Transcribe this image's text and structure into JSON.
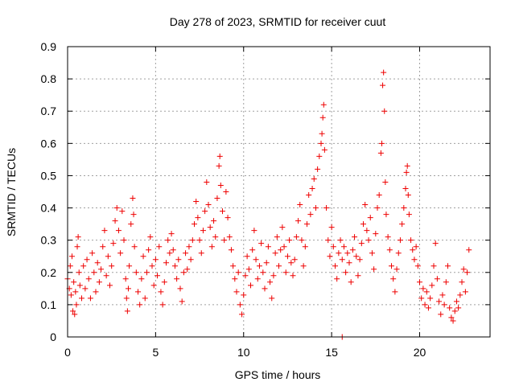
{
  "chart_data": {
    "type": "scatter",
    "title": "Day 278 of 2023, SRMTID for receiver cuut",
    "xlabel": "GPS time / hours",
    "ylabel": "SRMTID / TECUs",
    "xlim": [
      0,
      24
    ],
    "ylim": [
      0,
      0.9
    ],
    "xticks": [
      0,
      5,
      10,
      15,
      20
    ],
    "yticks": [
      0,
      0.1,
      0.2,
      0.3,
      0.4,
      0.5,
      0.6,
      0.7,
      0.8,
      0.9
    ],
    "xtick_labels": [
      "0",
      "5",
      "10",
      "15",
      "20"
    ],
    "ytick_labels": [
      "0",
      "0.1",
      "0.2",
      "0.3",
      "0.4",
      "0.5",
      "0.6",
      "0.7",
      "0.8",
      "0.9"
    ],
    "grid": true,
    "marker": "+",
    "color": "#ee0000",
    "series": [
      {
        "name": "SRMTID",
        "points": [
          [
            0.0,
            0.18
          ],
          [
            0.1,
            0.15
          ],
          [
            0.15,
            0.22
          ],
          [
            0.2,
            0.13
          ],
          [
            0.25,
            0.25
          ],
          [
            0.3,
            0.08
          ],
          [
            0.35,
            0.17
          ],
          [
            0.4,
            0.07
          ],
          [
            0.45,
            0.14
          ],
          [
            0.5,
            0.1
          ],
          [
            0.55,
            0.28
          ],
          [
            0.6,
            0.31
          ],
          [
            0.65,
            0.2
          ],
          [
            0.7,
            0.16
          ],
          [
            0.8,
            0.12
          ],
          [
            0.9,
            0.22
          ],
          [
            1.0,
            0.15
          ],
          [
            1.1,
            0.24
          ],
          [
            1.2,
            0.18
          ],
          [
            1.3,
            0.12
          ],
          [
            1.4,
            0.26
          ],
          [
            1.5,
            0.2
          ],
          [
            1.6,
            0.14
          ],
          [
            1.7,
            0.23
          ],
          [
            1.8,
            0.17
          ],
          [
            1.9,
            0.21
          ],
          [
            2.0,
            0.28
          ],
          [
            2.1,
            0.33
          ],
          [
            2.2,
            0.19
          ],
          [
            2.3,
            0.25
          ],
          [
            2.4,
            0.16
          ],
          [
            2.5,
            0.22
          ],
          [
            2.6,
            0.29
          ],
          [
            2.7,
            0.36
          ],
          [
            2.8,
            0.4
          ],
          [
            2.9,
            0.33
          ],
          [
            3.0,
            0.26
          ],
          [
            3.1,
            0.39
          ],
          [
            3.2,
            0.3
          ],
          [
            3.3,
            0.18
          ],
          [
            3.35,
            0.12
          ],
          [
            3.4,
            0.08
          ],
          [
            3.45,
            0.15
          ],
          [
            3.5,
            0.22
          ],
          [
            3.6,
            0.35
          ],
          [
            3.7,
            0.43
          ],
          [
            3.75,
            0.38
          ],
          [
            3.8,
            0.28
          ],
          [
            3.9,
            0.2
          ],
          [
            4.0,
            0.14
          ],
          [
            4.1,
            0.1
          ],
          [
            4.2,
            0.18
          ],
          [
            4.3,
            0.25
          ],
          [
            4.4,
            0.12
          ],
          [
            4.5,
            0.2
          ],
          [
            4.6,
            0.27
          ],
          [
            4.7,
            0.31
          ],
          [
            4.8,
            0.22
          ],
          [
            4.9,
            0.16
          ],
          [
            5.0,
            0.24
          ],
          [
            5.1,
            0.19
          ],
          [
            5.2,
            0.28
          ],
          [
            5.3,
            0.14
          ],
          [
            5.4,
            0.1
          ],
          [
            5.5,
            0.17
          ],
          [
            5.6,
            0.23
          ],
          [
            5.7,
            0.3
          ],
          [
            5.8,
            0.26
          ],
          [
            5.9,
            0.32
          ],
          [
            6.0,
            0.27
          ],
          [
            6.1,
            0.22
          ],
          [
            6.2,
            0.18
          ],
          [
            6.3,
            0.24
          ],
          [
            6.4,
            0.15
          ],
          [
            6.5,
            0.11
          ],
          [
            6.6,
            0.2
          ],
          [
            6.7,
            0.26
          ],
          [
            6.8,
            0.21
          ],
          [
            6.9,
            0.28
          ],
          [
            7.0,
            0.24
          ],
          [
            7.1,
            0.3
          ],
          [
            7.2,
            0.35
          ],
          [
            7.3,
            0.42
          ],
          [
            7.4,
            0.37
          ],
          [
            7.5,
            0.3
          ],
          [
            7.6,
            0.26
          ],
          [
            7.7,
            0.33
          ],
          [
            7.8,
            0.39
          ],
          [
            7.9,
            0.48
          ],
          [
            8.0,
            0.41
          ],
          [
            8.1,
            0.34
          ],
          [
            8.2,
            0.28
          ],
          [
            8.3,
            0.36
          ],
          [
            8.4,
            0.31
          ],
          [
            8.5,
            0.43
          ],
          [
            8.6,
            0.53
          ],
          [
            8.65,
            0.56
          ],
          [
            8.7,
            0.47
          ],
          [
            8.8,
            0.39
          ],
          [
            8.9,
            0.3
          ],
          [
            9.0,
            0.45
          ],
          [
            9.1,
            0.37
          ],
          [
            9.2,
            0.31
          ],
          [
            9.3,
            0.27
          ],
          [
            9.4,
            0.22
          ],
          [
            9.5,
            0.18
          ],
          [
            9.6,
            0.14
          ],
          [
            9.7,
            0.2
          ],
          [
            9.8,
            0.1
          ],
          [
            9.9,
            0.07
          ],
          [
            10.0,
            0.13
          ],
          [
            10.1,
            0.19
          ],
          [
            10.2,
            0.25
          ],
          [
            10.3,
            0.21
          ],
          [
            10.4,
            0.16
          ],
          [
            10.5,
            0.27
          ],
          [
            10.6,
            0.33
          ],
          [
            10.7,
            0.24
          ],
          [
            10.8,
            0.18
          ],
          [
            10.9,
            0.22
          ],
          [
            11.0,
            0.29
          ],
          [
            11.1,
            0.2
          ],
          [
            11.2,
            0.15
          ],
          [
            11.3,
            0.23
          ],
          [
            11.4,
            0.28
          ],
          [
            11.5,
            0.17
          ],
          [
            11.6,
            0.12
          ],
          [
            11.7,
            0.19
          ],
          [
            11.8,
            0.26
          ],
          [
            11.9,
            0.31
          ],
          [
            12.0,
            0.22
          ],
          [
            12.1,
            0.27
          ],
          [
            12.2,
            0.34
          ],
          [
            12.3,
            0.28
          ],
          [
            12.4,
            0.2
          ],
          [
            12.5,
            0.25
          ],
          [
            12.6,
            0.3
          ],
          [
            12.7,
            0.23
          ],
          [
            12.8,
            0.19
          ],
          [
            12.9,
            0.24
          ],
          [
            13.0,
            0.31
          ],
          [
            13.1,
            0.36
          ],
          [
            13.2,
            0.41
          ],
          [
            13.3,
            0.3
          ],
          [
            13.4,
            0.22
          ],
          [
            13.5,
            0.28
          ],
          [
            13.6,
            0.35
          ],
          [
            13.7,
            0.44
          ],
          [
            13.8,
            0.38
          ],
          [
            13.9,
            0.46
          ],
          [
            14.0,
            0.49
          ],
          [
            14.1,
            0.4
          ],
          [
            14.2,
            0.52
          ],
          [
            14.3,
            0.56
          ],
          [
            14.4,
            0.6
          ],
          [
            14.45,
            0.63
          ],
          [
            14.5,
            0.68
          ],
          [
            14.55,
            0.72
          ],
          [
            14.6,
            0.58
          ],
          [
            14.7,
            0.4
          ],
          [
            14.8,
            0.3
          ],
          [
            14.9,
            0.25
          ],
          [
            15.0,
            0.34
          ],
          [
            15.1,
            0.28
          ],
          [
            15.2,
            0.22
          ],
          [
            15.3,
            0.18
          ],
          [
            15.4,
            0.26
          ],
          [
            15.5,
            0.3
          ],
          [
            15.6,
            0.24
          ],
          [
            15.7,
            0.28
          ],
          [
            15.8,
            0.2
          ],
          [
            15.9,
            0.26
          ],
          [
            16.0,
            0.23
          ],
          [
            16.1,
            0.17
          ],
          [
            16.2,
            0.27
          ],
          [
            16.3,
            0.31
          ],
          [
            16.4,
            0.25
          ],
          [
            16.5,
            0.19
          ],
          [
            16.6,
            0.24
          ],
          [
            16.7,
            0.29
          ],
          [
            16.8,
            0.35
          ],
          [
            16.9,
            0.41
          ],
          [
            17.0,
            0.33
          ],
          [
            17.1,
            0.3
          ],
          [
            17.2,
            0.37
          ],
          [
            17.3,
            0.26
          ],
          [
            17.4,
            0.21
          ],
          [
            17.5,
            0.32
          ],
          [
            17.6,
            0.4
          ],
          [
            17.7,
            0.44
          ],
          [
            17.8,
            0.57
          ],
          [
            17.85,
            0.6
          ],
          [
            17.9,
            0.78
          ],
          [
            17.95,
            0.82
          ],
          [
            18.0,
            0.7
          ],
          [
            18.05,
            0.48
          ],
          [
            18.1,
            0.38
          ],
          [
            18.2,
            0.31
          ],
          [
            18.3,
            0.27
          ],
          [
            18.4,
            0.22
          ],
          [
            18.5,
            0.18
          ],
          [
            18.6,
            0.14
          ],
          [
            18.7,
            0.21
          ],
          [
            18.8,
            0.26
          ],
          [
            18.9,
            0.3
          ],
          [
            19.0,
            0.35
          ],
          [
            19.1,
            0.4
          ],
          [
            19.2,
            0.46
          ],
          [
            19.25,
            0.51
          ],
          [
            19.3,
            0.53
          ],
          [
            19.35,
            0.44
          ],
          [
            19.4,
            0.38
          ],
          [
            19.5,
            0.3
          ],
          [
            19.6,
            0.27
          ],
          [
            19.7,
            0.24
          ],
          [
            19.8,
            0.28
          ],
          [
            19.9,
            0.22
          ],
          [
            20.0,
            0.17
          ],
          [
            20.1,
            0.12
          ],
          [
            20.2,
            0.15
          ],
          [
            20.3,
            0.1
          ],
          [
            20.4,
            0.14
          ],
          [
            20.5,
            0.09
          ],
          [
            20.6,
            0.12
          ],
          [
            20.7,
            0.16
          ],
          [
            20.8,
            0.22
          ],
          [
            20.9,
            0.29
          ],
          [
            21.0,
            0.18
          ],
          [
            21.1,
            0.11
          ],
          [
            21.2,
            0.07
          ],
          [
            21.3,
            0.13
          ],
          [
            21.4,
            0.1
          ],
          [
            21.5,
            0.17
          ],
          [
            21.6,
            0.22
          ],
          [
            21.7,
            0.09
          ],
          [
            21.8,
            0.06
          ],
          [
            21.9,
            0.05
          ],
          [
            22.0,
            0.08
          ],
          [
            22.1,
            0.11
          ],
          [
            22.2,
            0.09
          ],
          [
            22.3,
            0.13
          ],
          [
            22.4,
            0.17
          ],
          [
            22.5,
            0.21
          ],
          [
            22.6,
            0.14
          ],
          [
            22.7,
            0.2
          ],
          [
            22.8,
            0.27
          ],
          [
            15.6,
            0.0
          ]
        ]
      }
    ]
  }
}
